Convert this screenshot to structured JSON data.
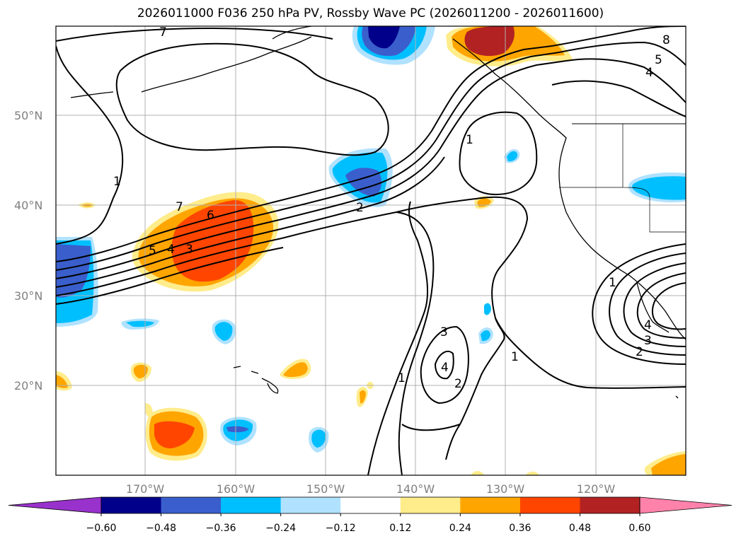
{
  "title": "2026011000 F036 250 hPa PV, Rossby Wave PC (2026011200 - 2026011600)",
  "map": {
    "lat_labels": [
      "50°N",
      "40°N",
      "30°N",
      "20°N"
    ],
    "lon_labels": [
      "170°W",
      "160°W",
      "150°W",
      "140°W",
      "130°W",
      "120°W"
    ],
    "contour_labels": [
      "7",
      "7",
      "5",
      "4",
      "8",
      "1",
      "1",
      "2",
      "6",
      "5",
      "4",
      "3",
      "3",
      "4",
      "2",
      "1",
      "1",
      "1",
      "4",
      "3",
      "2"
    ]
  },
  "colorbar": {
    "tick_labels": [
      "−0.60",
      "−0.48",
      "−0.36",
      "−0.24",
      "−0.12",
      "0.12",
      "0.24",
      "0.36",
      "0.48",
      "0.60"
    ],
    "colors": {
      "under": "#9932CC",
      "c1": "#00008B",
      "c2": "#3A5FCD",
      "c3": "#00BFFF",
      "c4": "#B0E2FF",
      "c5": "#FFFFFF",
      "c6": "#FFEC8B",
      "c7": "#FFA500",
      "c8": "#FF4500",
      "c9": "#B22222",
      "over": "#FF82AB"
    }
  }
}
